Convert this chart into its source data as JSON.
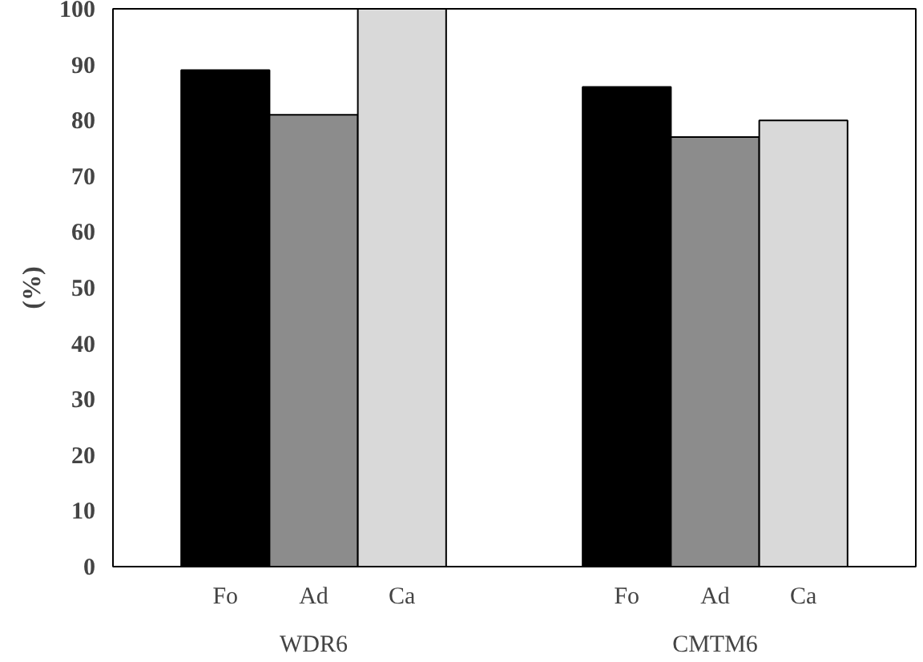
{
  "chart_data": {
    "type": "bar",
    "ylabel": "(%)",
    "categories": [
      "WDR6",
      "CMTM6"
    ],
    "series": [
      {
        "name": "Fo",
        "color": "#000000",
        "values": [
          89,
          86
        ]
      },
      {
        "name": "Ad",
        "color": "#8c8c8c",
        "values": [
          81,
          77
        ]
      },
      {
        "name": "Ca",
        "color": "#d9d9d9",
        "values": [
          100,
          80
        ]
      }
    ],
    "ylim": [
      0,
      100
    ],
    "yticks": [
      0,
      10,
      20,
      30,
      40,
      50,
      60,
      70,
      80,
      90,
      100
    ],
    "grid": false,
    "legend": false
  }
}
